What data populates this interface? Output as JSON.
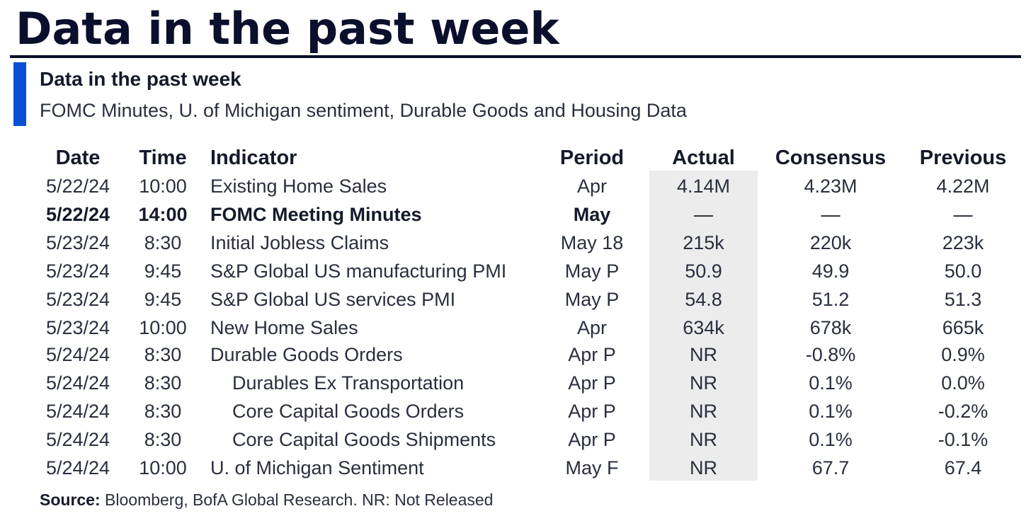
{
  "header": {
    "title": "Data in the past week",
    "subtitle": "Data in the past week",
    "description": "FOMC Minutes, U. of Michigan sentiment, Durable Goods and Housing Data"
  },
  "table": {
    "columns": [
      "Date",
      "Time",
      "Indicator",
      "Period",
      "Actual",
      "Consensus",
      "Previous"
    ],
    "rows": [
      {
        "date": "5/22/24",
        "time": "10:00",
        "indicator": "Existing Home Sales",
        "period": "Apr",
        "actual": "4.14M",
        "consensus": "4.23M",
        "previous": "4.22M"
      },
      {
        "date": "5/22/24",
        "time": "14:00",
        "indicator": "FOMC Meeting Minutes",
        "period": "May",
        "actual": "—",
        "consensus": "—",
        "previous": "—"
      },
      {
        "date": "5/23/24",
        "time": "8:30",
        "indicator": "Initial Jobless Claims",
        "period": "May 18",
        "actual": "215k",
        "consensus": "220k",
        "previous": "223k"
      },
      {
        "date": "5/23/24",
        "time": "9:45",
        "indicator": "S&P Global US manufacturing PMI",
        "period": "May P",
        "actual": "50.9",
        "consensus": "49.9",
        "previous": "50.0"
      },
      {
        "date": "5/23/24",
        "time": "9:45",
        "indicator": "S&P Global US services PMI",
        "period": "May P",
        "actual": "54.8",
        "consensus": "51.2",
        "previous": "51.3"
      },
      {
        "date": "5/23/24",
        "time": "10:00",
        "indicator": "New Home Sales",
        "period": "Apr",
        "actual": "634k",
        "consensus": "678k",
        "previous": "665k"
      },
      {
        "date": "5/24/24",
        "time": "8:30",
        "indicator": "Durable Goods Orders",
        "period": "Apr P",
        "actual": "NR",
        "consensus": "-0.8%",
        "previous": "0.9%"
      },
      {
        "date": "5/24/24",
        "time": "8:30",
        "indicator": "Durables Ex Transportation",
        "period": "Apr P",
        "actual": "NR",
        "consensus": "0.1%",
        "previous": "0.0%"
      },
      {
        "date": "5/24/24",
        "time": "8:30",
        "indicator": "Core Capital Goods Orders",
        "period": "Apr P",
        "actual": "NR",
        "consensus": "0.1%",
        "previous": "-0.2%"
      },
      {
        "date": "5/24/24",
        "time": "8:30",
        "indicator": "Core Capital Goods Shipments",
        "period": "Apr P",
        "actual": "NR",
        "consensus": "0.1%",
        "previous": "-0.1%"
      },
      {
        "date": "5/24/24",
        "time": "10:00",
        "indicator": "U. of Michigan Sentiment",
        "period": "May F",
        "actual": "NR",
        "consensus": "67.7",
        "previous": "67.4"
      }
    ]
  },
  "footer": {
    "source_label": "Source:",
    "source_text": " Bloomberg, BofA Global Research. NR: Not Released"
  },
  "colors": {
    "title": "#0a0f2c",
    "accent": "#0a4fd6",
    "actual_shade": "#ececec"
  }
}
